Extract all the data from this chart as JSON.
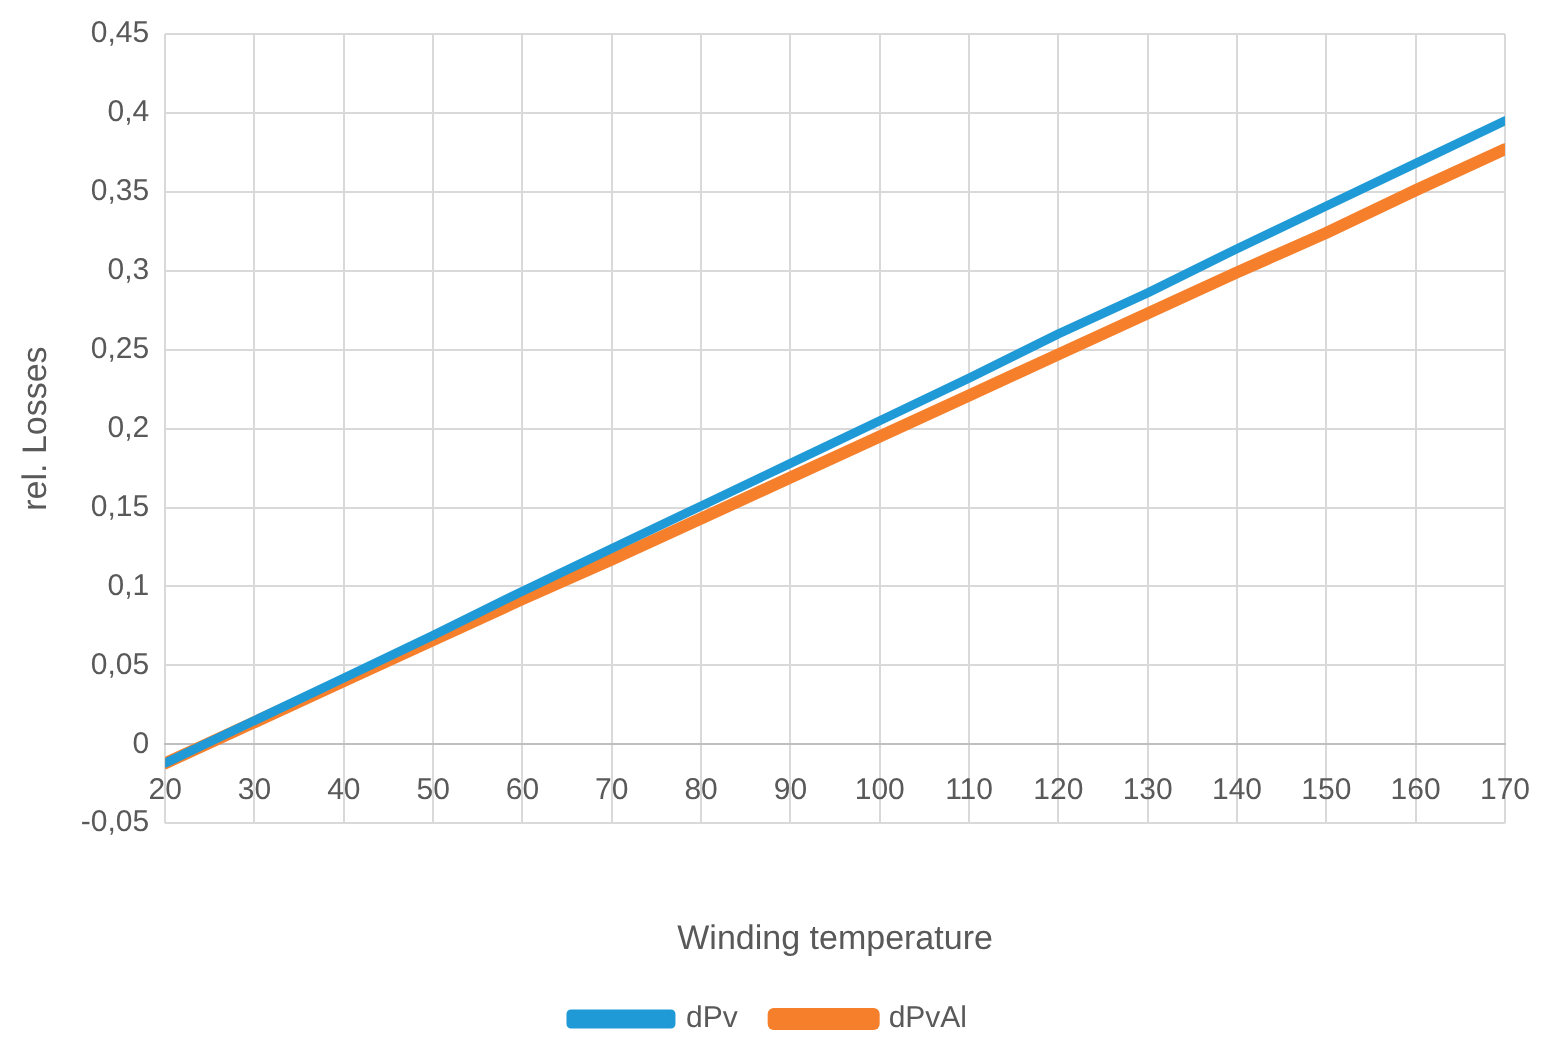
{
  "chart_data": {
    "type": "line",
    "xlabel": "Winding temperature",
    "ylabel": "rel. Losses",
    "x": [
      20,
      30,
      40,
      50,
      60,
      70,
      80,
      90,
      100,
      110,
      120,
      130,
      140,
      150,
      160,
      170
    ],
    "series": [
      {
        "name": "dPv",
        "color": "#1f9ad6",
        "values": [
          -0.012,
          0.015,
          0.042,
          0.069,
          0.097,
          0.124,
          0.151,
          0.178,
          0.205,
          0.232,
          0.26,
          0.286,
          0.314,
          0.341,
          0.368,
          0.395
        ]
      },
      {
        "name": "dPvAl",
        "color": "#f57f2a",
        "values": [
          -0.012,
          0.014,
          0.04,
          0.066,
          0.092,
          0.117,
          0.143,
          0.169,
          0.195,
          0.221,
          0.247,
          0.273,
          0.299,
          0.324,
          0.351,
          0.377
        ]
      }
    ],
    "xlim": [
      20,
      170
    ],
    "xticks": [
      20,
      30,
      40,
      50,
      60,
      70,
      80,
      90,
      100,
      110,
      120,
      130,
      140,
      150,
      160,
      170
    ],
    "ylim": [
      -0.05,
      0.45
    ],
    "yticks": [
      {
        "value": -0.05,
        "label": "-0,05"
      },
      {
        "value": 0,
        "label": "0"
      },
      {
        "value": 0.05,
        "label": "0,05"
      },
      {
        "value": 0.1,
        "label": "0,1"
      },
      {
        "value": 0.15,
        "label": "0,15"
      },
      {
        "value": 0.2,
        "label": "0,2"
      },
      {
        "value": 0.25,
        "label": "0,25"
      },
      {
        "value": 0.3,
        "label": "0,3"
      },
      {
        "value": 0.35,
        "label": "0,35"
      },
      {
        "value": 0.4,
        "label": "0,4"
      },
      {
        "value": 0.45,
        "label": "0,45"
      }
    ],
    "grid": true,
    "legend": "bottom",
    "marker": "none",
    "line_style": "solid"
  }
}
